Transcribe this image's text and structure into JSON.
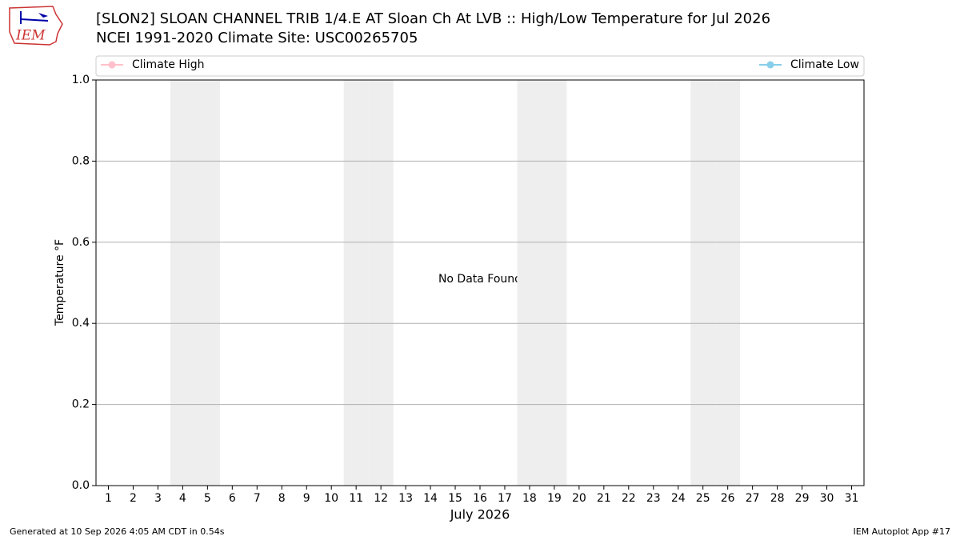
{
  "chart_data": {
    "type": "line",
    "title": "[SLON2] SLOAN CHANNEL TRIB 1/4.E AT Sloan Ch At LVB :: High/Low Temperature for Jul 2026",
    "subtitle": "NCEI 1991-2020 Climate Site: USC00265705",
    "xlabel": "July 2026",
    "ylabel": "Temperature °F",
    "annotation": "No Data Found",
    "series": [
      {
        "name": "Climate High",
        "color": "#ffc0cb",
        "values": []
      },
      {
        "name": "Climate Low",
        "color": "#87ceeb",
        "values": []
      }
    ],
    "xlim": [
      0.5,
      31.5
    ],
    "xticks": [
      1,
      2,
      3,
      4,
      5,
      6,
      7,
      8,
      9,
      10,
      11,
      12,
      13,
      14,
      15,
      16,
      17,
      18,
      19,
      20,
      21,
      22,
      23,
      24,
      25,
      26,
      27,
      28,
      29,
      30,
      31
    ],
    "ylim": [
      0,
      1
    ],
    "yticks": [
      {
        "value": 0,
        "label": "0.0"
      },
      0.2,
      0.4,
      0.6,
      0.8,
      {
        "value": 1,
        "label": "1.0"
      }
    ],
    "weekends": [
      4,
      5,
      11,
      12,
      18,
      19,
      25,
      26
    ],
    "grid": true
  },
  "logo_text": "IEM",
  "footer": {
    "left": "Generated at 10 Sep 2026 4:05 AM CDT in 0.54s",
    "right": "IEM Autoplot App #17"
  }
}
